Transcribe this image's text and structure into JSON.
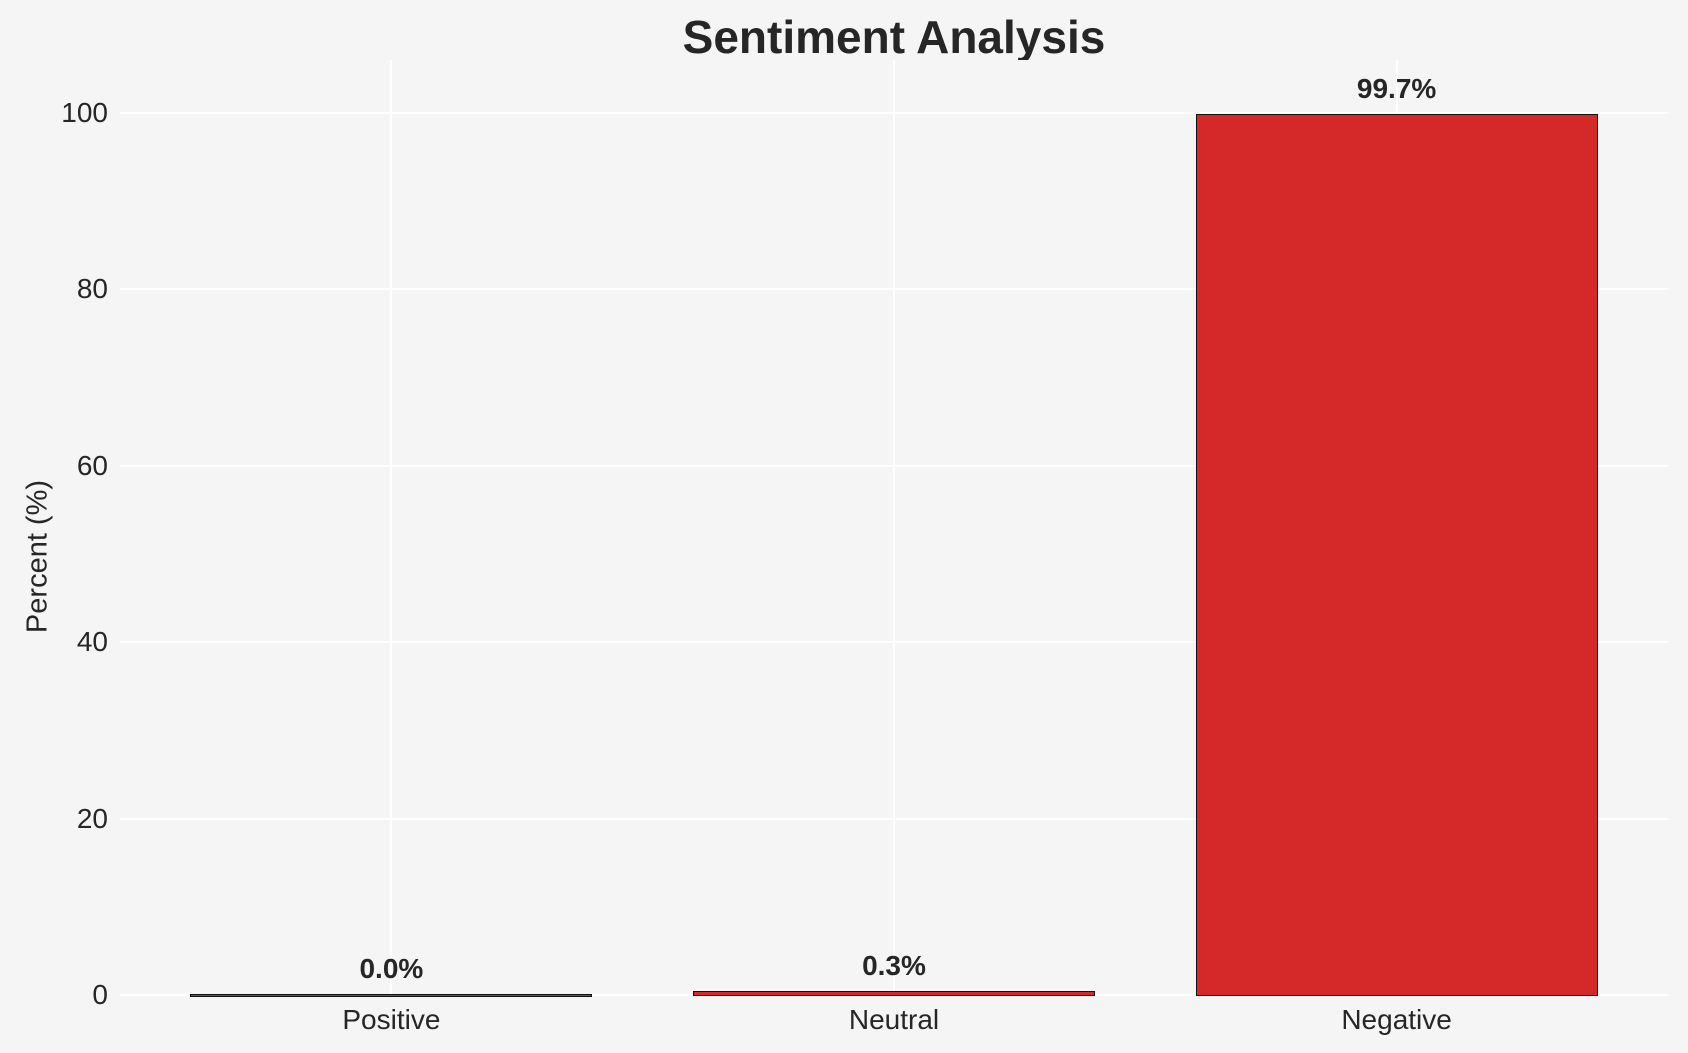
{
  "figure": {
    "background_color": "#f5f5f5",
    "text_color": "#262626"
  },
  "chart_data": {
    "type": "bar",
    "title": "Sentiment Analysis",
    "categories": [
      "Positive",
      "Neutral",
      "Negative"
    ],
    "values": [
      0.0,
      0.3,
      99.7
    ],
    "bar_labels": [
      "0.0%",
      "0.3%",
      "99.7%"
    ],
    "xlabel": "",
    "ylabel": "Percent (%)",
    "ylim": [
      0,
      100
    ],
    "yticks": [
      0,
      20,
      40,
      60,
      80,
      100
    ],
    "grid": true,
    "gridline_color": "#ffffff",
    "legend_position": "none",
    "bar_color": "#d42829",
    "bar_edge_color": "#111111"
  }
}
